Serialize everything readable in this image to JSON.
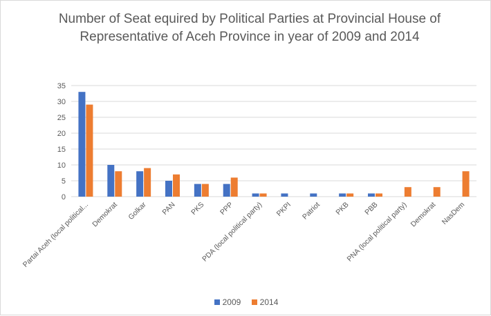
{
  "chart_data": {
    "type": "bar",
    "title": "Number of Seat equired by Political Parties at Provincial House of Representative of Aceh Province in year of 2009 and 2014",
    "xlabel": "",
    "ylabel": "",
    "ylim": [
      0,
      35
    ],
    "yticks": [
      "0",
      "5",
      "10",
      "15",
      "20",
      "25",
      "30",
      "35"
    ],
    "grid": true,
    "legend_position": "bottom",
    "categories": [
      "Partai Aceh (local political...",
      "Demokrat",
      "Golkar",
      "PAN",
      "PKS",
      "PPP",
      "PDA (local political party)",
      "PKPI",
      "Patriot",
      "PKB",
      "PBB",
      "PNA (local political party)",
      "Demokrat",
      "NasDem"
    ],
    "series": [
      {
        "name": "2009",
        "color": "#4472c4",
        "values": [
          33,
          10,
          8,
          5,
          4,
          4,
          1,
          1,
          1,
          1,
          1,
          0,
          0,
          0
        ]
      },
      {
        "name": "2014",
        "color": "#ed7d31",
        "values": [
          29,
          8,
          9,
          7,
          4,
          6,
          1,
          0,
          0,
          1,
          1,
          3,
          3,
          8
        ]
      }
    ]
  }
}
